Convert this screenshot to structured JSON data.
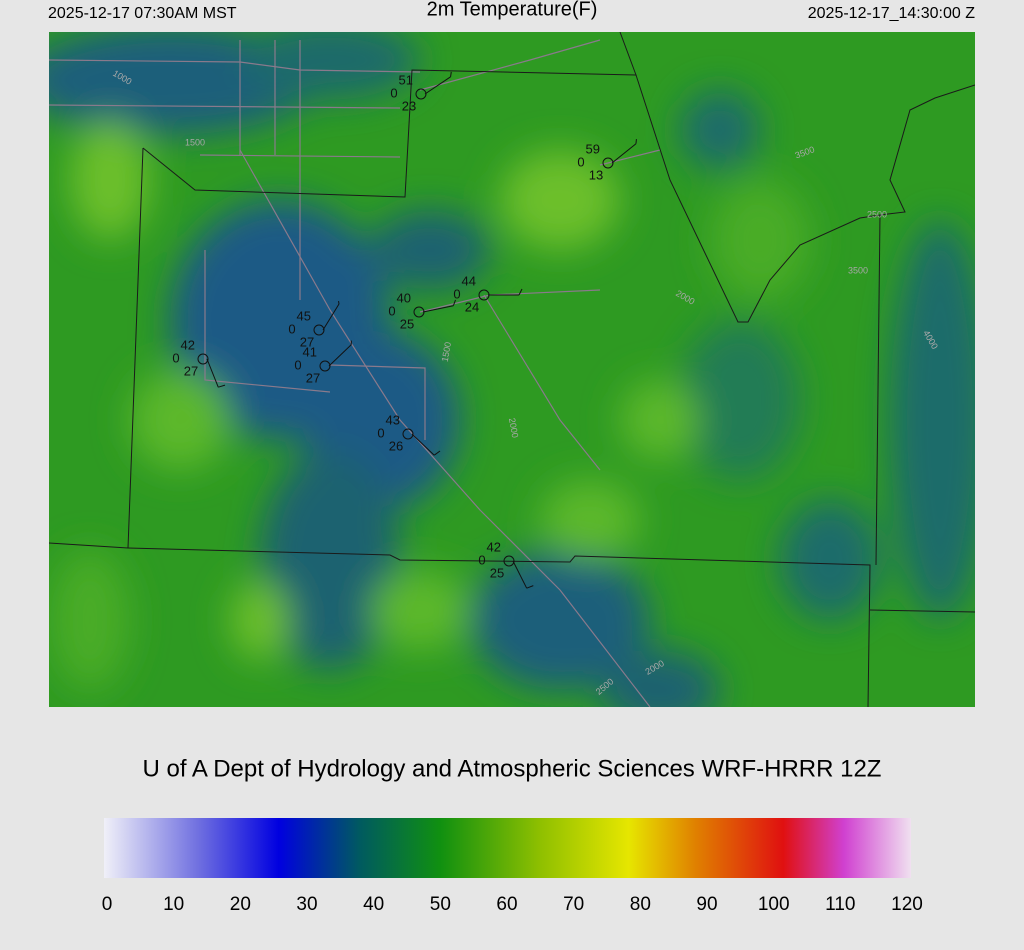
{
  "header": {
    "left": "2025-12-17 07:30AM MST",
    "title": "2m Temperature(F)",
    "right": "2025-12-17_14:30:00 Z"
  },
  "stations": [
    {
      "temperature": "51",
      "left": "0",
      "bottom": "23"
    },
    {
      "temperature": "59",
      "left": "0",
      "bottom": "13"
    },
    {
      "temperature": "44",
      "left": "0",
      "bottom": "24"
    },
    {
      "temperature": "40",
      "left": "0",
      "bottom": "25"
    },
    {
      "temperature": "45",
      "left": "0",
      "bottom": "27"
    },
    {
      "temperature": "41",
      "left": "0",
      "bottom": "27"
    },
    {
      "temperature": "42",
      "left": "0",
      "bottom": "27"
    },
    {
      "temperature": "43",
      "left": "0",
      "bottom": "26"
    },
    {
      "temperature": "42",
      "left": "0",
      "bottom": "25"
    }
  ],
  "contour_labels": [
    "1000",
    "1500",
    "2500",
    "3500",
    "2000",
    "1500",
    "2000",
    "2000",
    "2500",
    "4000",
    "3500"
  ],
  "footer": "U of A Dept of Hydrology and Atmospheric Sciences WRF-HRRR 12Z",
  "colorbar": {
    "lim": [
      0,
      120
    ],
    "ticks": [
      0,
      10,
      20,
      30,
      40,
      50,
      60,
      70,
      80,
      90,
      100,
      110,
      120
    ],
    "stops": [
      {
        "value": 0,
        "color": "#f0f0f8"
      },
      {
        "value": 14,
        "color": "#7070e0"
      },
      {
        "value": 26,
        "color": "#0000e0"
      },
      {
        "value": 38,
        "color": "#005a60"
      },
      {
        "value": 50,
        "color": "#109010"
      },
      {
        "value": 65,
        "color": "#90c000"
      },
      {
        "value": 78,
        "color": "#e6e600"
      },
      {
        "value": 88,
        "color": "#e08000"
      },
      {
        "value": 101,
        "color": "#e01010"
      },
      {
        "value": 110,
        "color": "#d040d0"
      },
      {
        "value": 120,
        "color": "#f0e0f0"
      }
    ]
  }
}
